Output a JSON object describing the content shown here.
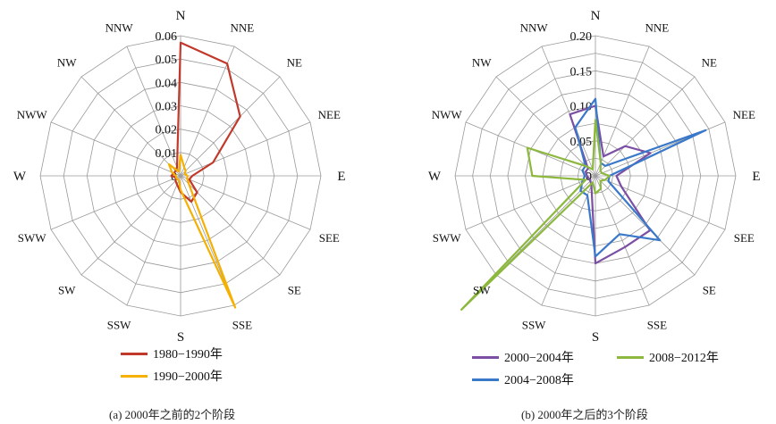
{
  "chart_data": [
    {
      "type": "radar",
      "caption": "(a) 2000年之前的2个阶段",
      "directions": [
        "N",
        "NNE",
        "NE",
        "NEE",
        "E",
        "SEE",
        "SE",
        "SSE",
        "S",
        "SSW",
        "SW",
        "SWW",
        "W",
        "NWW",
        "NW",
        "NNW"
      ],
      "radial_ticks": [
        "0",
        "0.01",
        "0.02",
        "0.03",
        "0.04",
        "0.05",
        "0.06"
      ],
      "rmax": 0.06,
      "ring_count": 6,
      "series": [
        {
          "name": "1980−1990年",
          "color": "#c0392b",
          "values": [
            0.057,
            0.052,
            0.036,
            0.015,
            0.005,
            0.004,
            0.01,
            0.012,
            0.007,
            0.004,
            0.003,
            0.002,
            0.004,
            0.003,
            0.003,
            0.004
          ]
        },
        {
          "name": "1990−2000年",
          "color": "#f5b000",
          "values": [
            0.009,
            0.004,
            0.003,
            0.002,
            0.003,
            0.003,
            0.005,
            0.061,
            0.006,
            0.002,
            0.002,
            0.002,
            0.002,
            0.004,
            0.007,
            0.002
          ]
        }
      ]
    },
    {
      "type": "radar",
      "caption": "(b) 2000年之后的3个阶段",
      "directions": [
        "N",
        "NNE",
        "NE",
        "NEE",
        "E",
        "SEE",
        "SE",
        "SSE",
        "S",
        "SSW",
        "SW",
        "SWW",
        "W",
        "NWW",
        "NW",
        "NNW"
      ],
      "radial_ticks": [
        "0",
        "0.05",
        "0.10",
        "0.15",
        "0.20"
      ],
      "rmax": 0.2,
      "ring_count": 8,
      "series": [
        {
          "name": "2000−2004年",
          "color": "#7b4fa3",
          "values": [
            0.1,
            0.03,
            0.06,
            0.085,
            0.03,
            0.04,
            0.11,
            0.11,
            0.125,
            0.015,
            0.01,
            0.01,
            0.012,
            0.015,
            0.015,
            0.095
          ]
        },
        {
          "name": "2004−2008年",
          "color": "#3a78c9",
          "values": [
            0.11,
            0.02,
            0.02,
            0.17,
            0.02,
            0.02,
            0.13,
            0.09,
            0.115,
            0.03,
            0.03,
            0.02,
            0.015,
            0.02,
            0.02,
            0.075
          ]
        },
        {
          "name": "2008−2012年",
          "color": "#8cb83d",
          "values": [
            0.08,
            0.02,
            0.01,
            0.01,
            0.02,
            0.015,
            0.01,
            0.02,
            0.025,
            0.01,
            0.27,
            0.015,
            0.09,
            0.105,
            0.02,
            0.01
          ]
        }
      ]
    }
  ]
}
